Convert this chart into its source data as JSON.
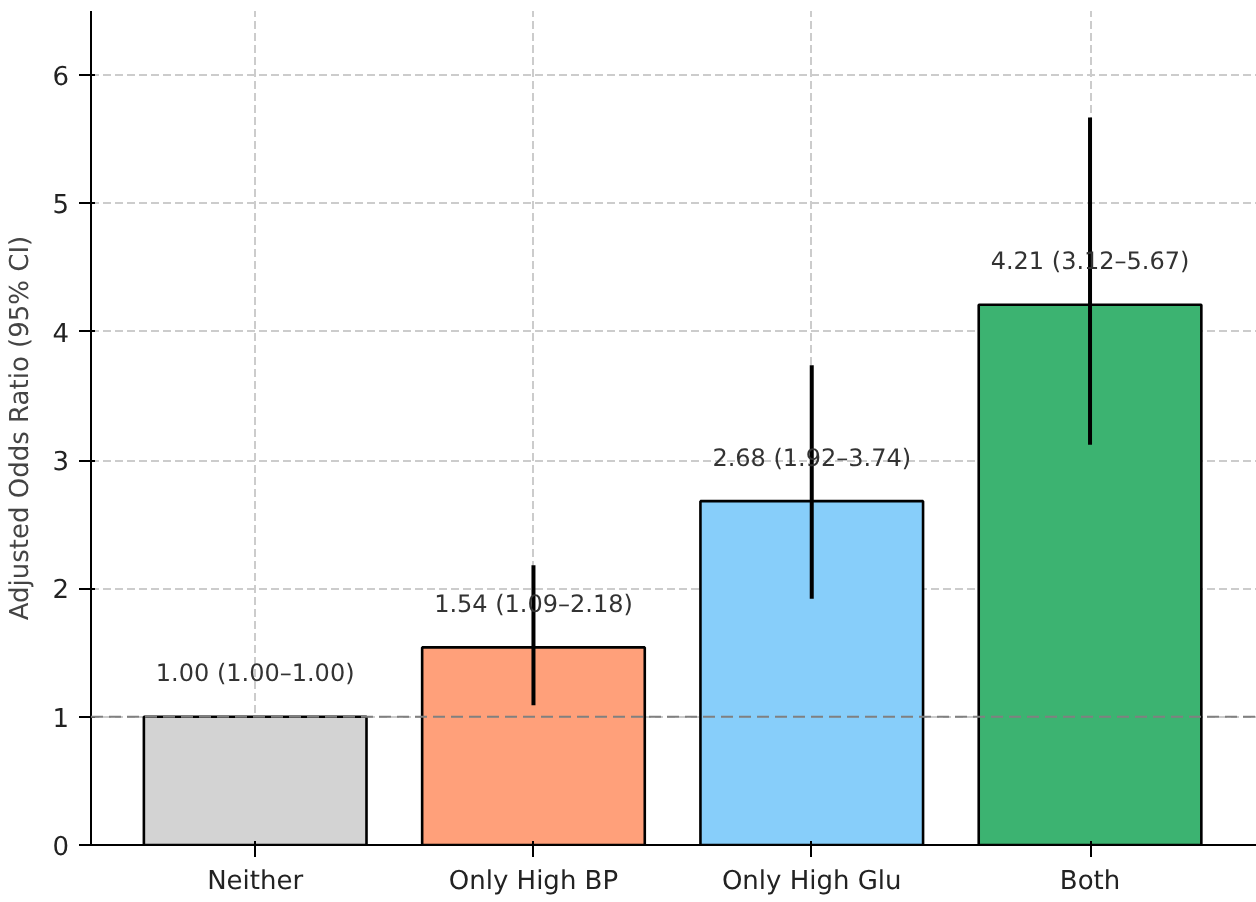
{
  "chart_data": {
    "type": "bar",
    "ylabel": "Adjusted Odds Ratio (95% CI)",
    "categories": [
      "Neither",
      "Only High BP",
      "Only High Glu",
      "Both"
    ],
    "values": [
      1.0,
      1.54,
      2.68,
      4.21
    ],
    "colors": [
      "#d3d3d3",
      "#ffa07a",
      "#87cefa",
      "#3cb371"
    ],
    "errors": [
      [
        1.0,
        1.0
      ],
      [
        1.09,
        2.18
      ],
      [
        1.92,
        3.74
      ],
      [
        3.12,
        5.67
      ]
    ],
    "value_labels": [
      "1.00 (1.00–1.00)",
      "1.54 (1.09–2.18)",
      "2.68 (1.92–3.74)",
      "4.21 (3.12–5.67)"
    ],
    "ylim": [
      0,
      6.5
    ],
    "yticks": [
      0,
      1,
      2,
      3,
      4,
      5,
      6
    ],
    "grid": true,
    "ref_lines": [
      {
        "axis": "y",
        "value": 1,
        "color": "#808080",
        "line_style": "dashed"
      }
    ]
  }
}
